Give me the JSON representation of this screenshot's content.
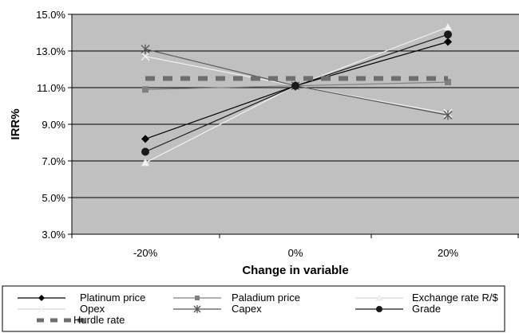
{
  "chart_data": {
    "type": "line",
    "categories": [
      "-20%",
      "0%",
      "20%"
    ],
    "xlabel": "Change in variable",
    "ylabel": "IRR%",
    "ylim": [
      3.0,
      15.0
    ],
    "yticks": [
      "3.0%",
      "5.0%",
      "7.0%",
      "9.0%",
      "11.0%",
      "13.0%",
      "15.0%"
    ],
    "grid": true,
    "legend_position": "bottom",
    "series": [
      {
        "name": "Platinum price",
        "values": [
          8.2,
          11.1,
          13.5
        ],
        "color": "#000000",
        "marker": "diamond",
        "dashed": false
      },
      {
        "name": "Paladium price",
        "values": [
          10.9,
          11.1,
          11.3
        ],
        "color": "#808080",
        "marker": "square",
        "dashed": false
      },
      {
        "name": "Exchange rate R/$",
        "values": [
          6.9,
          11.1,
          14.3
        ],
        "color": "#f0f0f0",
        "marker": "triangle",
        "dashed": false
      },
      {
        "name": "Opex",
        "values": [
          12.7,
          11.1,
          9.6
        ],
        "color": "#f2f2f2",
        "marker": "x",
        "dashed": false
      },
      {
        "name": "Capex",
        "values": [
          13.1,
          11.1,
          9.5
        ],
        "color": "#555555",
        "marker": "star",
        "dashed": false
      },
      {
        "name": "Grade",
        "values": [
          7.5,
          11.1,
          13.9
        ],
        "color": "#1a1a1a",
        "marker": "circle",
        "dashed": false
      },
      {
        "name": "Hurdle rate",
        "values": [
          11.5,
          11.5,
          11.5
        ],
        "color": "#6e6e6e",
        "marker": "none",
        "dashed": true
      }
    ]
  }
}
